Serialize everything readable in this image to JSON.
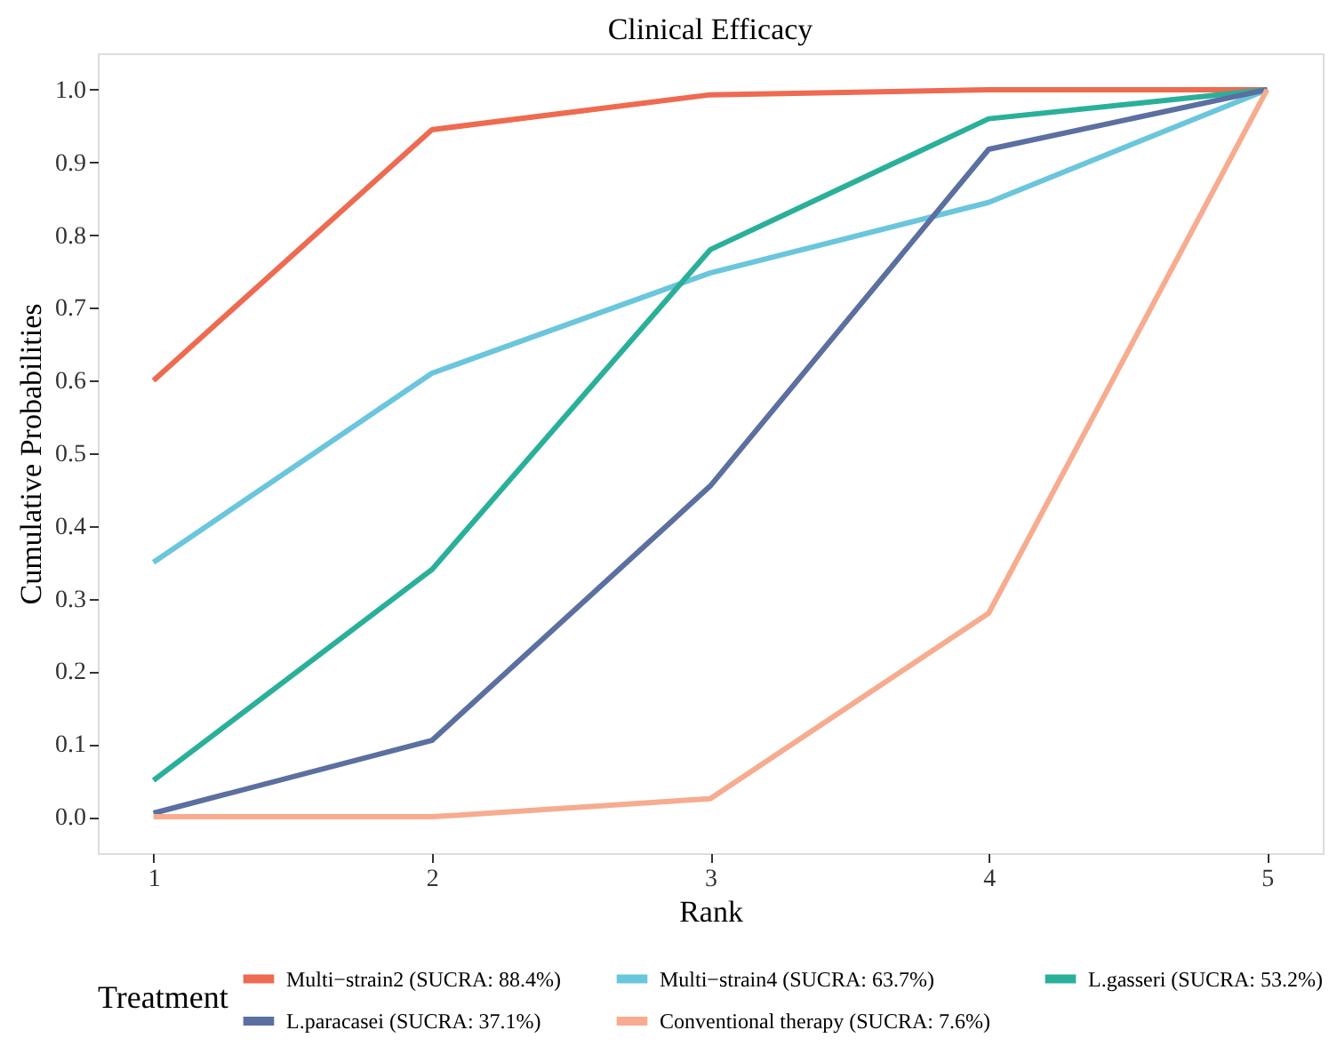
{
  "chart_data": {
    "type": "line",
    "title": "Clinical Efficacy",
    "xlabel": "Rank",
    "ylabel": "Cumulative Probabilities",
    "legend_title": "Treatment",
    "legend": "bottom",
    "grid": false,
    "marker": "none",
    "line_style": "solid",
    "x": [
      1,
      2,
      3,
      4,
      5
    ],
    "xlim": [
      0.8,
      5.2
    ],
    "xticks": [
      1,
      2,
      3,
      4,
      5
    ],
    "ylim": [
      -0.05,
      1.05
    ],
    "yticks": [
      {
        "value": 0,
        "label": "0.0"
      },
      {
        "value": 0.1,
        "label": "0.1"
      },
      {
        "value": 0.2,
        "label": "0.2"
      },
      {
        "value": 0.3,
        "label": "0.3"
      },
      {
        "value": 0.4,
        "label": "0.4"
      },
      {
        "value": 0.5,
        "label": "0.5"
      },
      {
        "value": 0.6,
        "label": "0.6"
      },
      {
        "value": 0.7,
        "label": "0.7"
      },
      {
        "value": 0.8,
        "label": "0.8"
      },
      {
        "value": 0.9,
        "label": "0.9"
      },
      {
        "value": 1,
        "label": "1.0"
      }
    ],
    "series": [
      {
        "name": "Multi−strain2 (SUCRA: 88.4%)",
        "color": "#ee6a50",
        "values": [
          0.6,
          0.945,
          0.993,
          1.0,
          1.0
        ]
      },
      {
        "name": "Multi−strain4 (SUCRA: 63.7%)",
        "color": "#6ac6dc",
        "values": [
          0.35,
          0.61,
          0.748,
          0.845,
          1.0
        ]
      },
      {
        "name": "L.gasseri (SUCRA: 53.2%)",
        "color": "#2ab09a",
        "values": [
          0.05,
          0.34,
          0.78,
          0.96,
          1.0
        ]
      },
      {
        "name": "L.paracasei (SUCRA: 37.1%)",
        "color": "#5b6fa0",
        "values": [
          0.005,
          0.105,
          0.455,
          0.918,
          1.0
        ]
      },
      {
        "name": "Conventional therapy (SUCRA: 7.6%)",
        "color": "#f7ab8f",
        "values": [
          0.0,
          0.0,
          0.025,
          0.28,
          1.0
        ]
      }
    ]
  }
}
